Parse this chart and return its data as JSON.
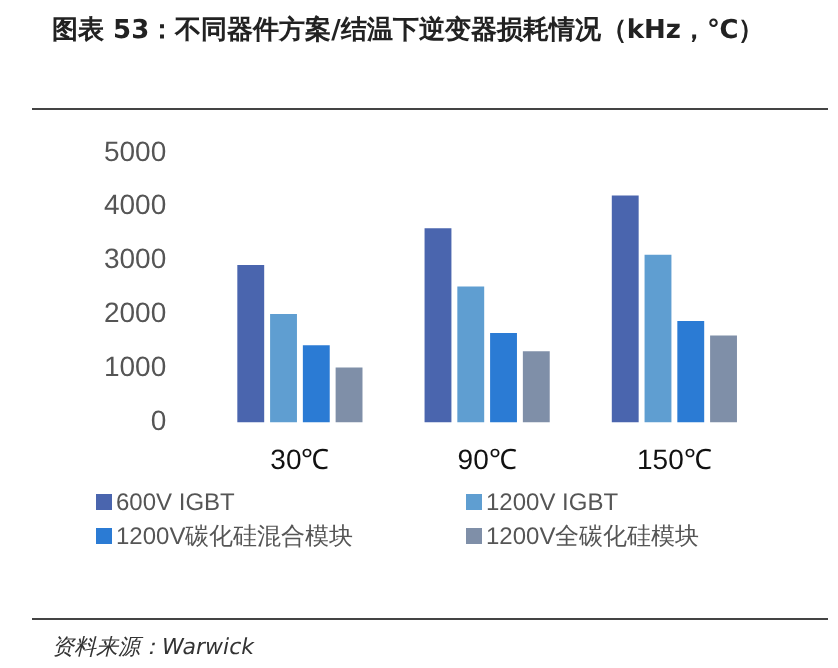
{
  "chart_data": {
    "type": "bar",
    "title": "图表 53：不同器件方案/结温下逆变器损耗情况（kHz，℃）",
    "categories": [
      "30℃",
      "90℃",
      "150℃"
    ],
    "series": [
      {
        "name": "600V IGBT",
        "color": "#4a65ae",
        "values": [
          2920,
          3600,
          4210
        ]
      },
      {
        "name": "1200V IGBT",
        "color": "#5f9ed1",
        "values": [
          2010,
          2520,
          3110
        ]
      },
      {
        "name": "1200V碳化硅混合模块",
        "color": "#2b7bd4",
        "values": [
          1430,
          1660,
          1880
        ]
      },
      {
        "name": "1200V全碳化硅模块",
        "color": "#7f8fa8",
        "values": [
          1020,
          1320,
          1610
        ]
      }
    ],
    "ylim": [
      0,
      5000
    ],
    "yticks": [
      0,
      1000,
      2000,
      3000,
      4000,
      5000
    ],
    "grid": false,
    "legend": "bottom",
    "annotations": [
      "资料来源：Warwick"
    ]
  }
}
